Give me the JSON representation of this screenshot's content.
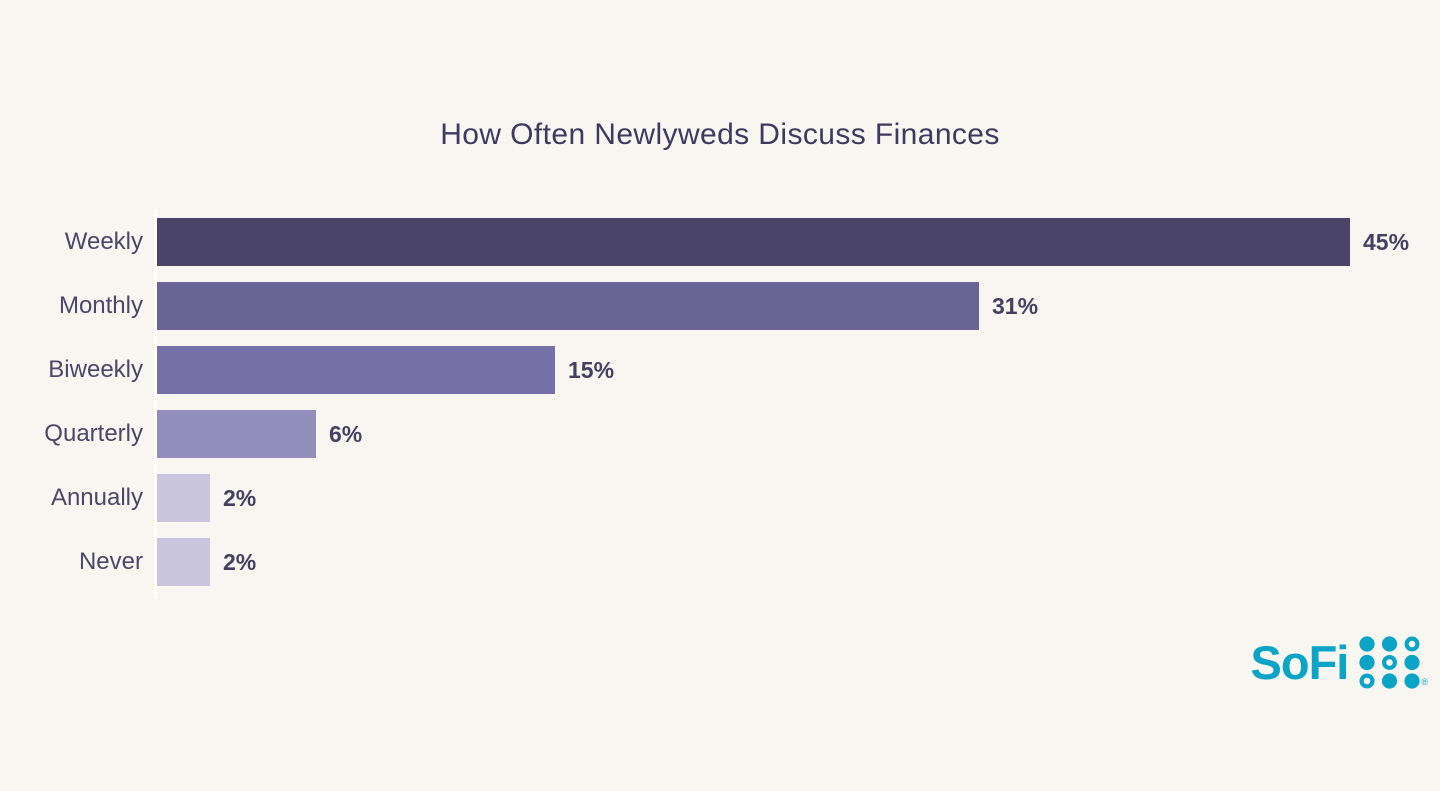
{
  "title": "How Often Newlyweds Discuss Finances",
  "colors": {
    "background": "#f8f6f1",
    "title_text": "#3d3a60",
    "category_label_text": "#4b4768",
    "value_label_text": "#444060",
    "axis_line": "#fffefa",
    "logo_teal": "#0ba4c6"
  },
  "chart_data": {
    "type": "bar",
    "orientation": "horizontal",
    "title": "How Often Newlyweds Discuss Finances",
    "categories": [
      "Weekly",
      "Monthly",
      "Biweekly",
      "Quarterly",
      "Annually",
      "Never"
    ],
    "values": [
      45,
      31,
      15,
      6,
      2,
      2
    ],
    "value_labels": [
      "45%",
      "31%",
      "15%",
      "6%",
      "2%",
      "2%"
    ],
    "bar_colors": [
      "#4a4468",
      "#6a6494",
      "#7570a8",
      "#938dbb",
      "#c8c5dc",
      "#c8c5dc"
    ],
    "xlabel": "",
    "ylabel": "",
    "xlim": [
      0,
      45
    ],
    "grid": false,
    "legend": false,
    "value_label_position": "end-of-bar"
  },
  "branding": {
    "logo_text": "SoFi",
    "registered_mark": "®",
    "dot_grid": {
      "rows": 3,
      "cols": 3,
      "pattern": [
        [
          "filled",
          "filled",
          "outline"
        ],
        [
          "filled",
          "outline",
          "filled"
        ],
        [
          "outline",
          "filled",
          "filled"
        ]
      ]
    }
  }
}
